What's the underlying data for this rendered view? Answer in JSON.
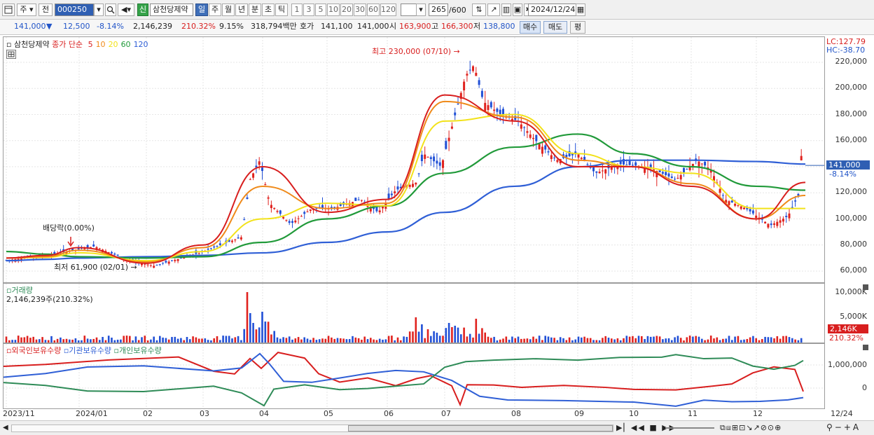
{
  "toolbar": {
    "menu_icon": "window-icon",
    "type_label": "주",
    "prev_label": "전",
    "code": "000250",
    "stock_name_badge": "신",
    "stock_name": "삼천당제약",
    "periods": [
      "일",
      "주",
      "월",
      "년",
      "분",
      "초",
      "틱"
    ],
    "active_period": "일",
    "intervals": [
      "1",
      "3",
      "5",
      "10",
      "20",
      "30",
      "60",
      "120"
    ],
    "count": "265",
    "count_total": "/600",
    "date": "2024/12/24"
  },
  "quote": {
    "price": "141,000",
    "change_arrow": "▼",
    "change": "12,500",
    "change_pct": "-8.14%",
    "volume": "2,146,239",
    "volume_ratio": "210.32%",
    "turnover": "9.15%",
    "amount": "318,794백만",
    "hoga_label": "호가",
    "bid": "141,100",
    "ask": "141,000",
    "open_label": "시",
    "open": "163,900",
    "high_label": "고",
    "high": "166,300",
    "low_label": "저",
    "low": "138,800",
    "buy_label": "매수",
    "sell_label": "매도",
    "eval_label": "평"
  },
  "price_panel": {
    "legend_name": "삼천당제약",
    "legend_ma_label": "종가 단순",
    "ma_periods": [
      "5",
      "10",
      "20",
      "60",
      "120"
    ],
    "ma_colors": [
      "#d81e1e",
      "#ef8a1a",
      "#f2e21a",
      "#219a3a",
      "#2f5fd6"
    ],
    "lc": "LC:127.79",
    "hc": "HC:-38.70",
    "annotation_high": "최고 230,000 (07/10) →",
    "annotation_low": "최저 61,900 (02/01) →",
    "annotation_div": "배당락(0.00%)",
    "current_price_label": "141,000",
    "current_pct_label": "-8.14%",
    "yticks": [
      "220,000",
      "200,000",
      "180,000",
      "160,000",
      "140,000",
      "120,000",
      "100,000",
      "80,000",
      "60,000"
    ]
  },
  "volume_panel": {
    "title": "거래량",
    "value": "2,146,239주(210.32%)",
    "yticks": [
      "10,000K",
      "5,000K"
    ],
    "current_label": "2,146K",
    "current_pct": "210.32%"
  },
  "holding_panel": {
    "legend": [
      "외국인보유수량",
      "기관보유수량",
      "개인보유수량"
    ],
    "colors": [
      "#d81e1e",
      "#2f5fd6",
      "#2e8b57"
    ],
    "yticks": [
      "1,000,000",
      "0"
    ]
  },
  "xaxis": [
    "2023/11",
    "2024/01",
    "02",
    "03",
    "04",
    "05",
    "06",
    "07",
    "08",
    "09",
    "10",
    "11",
    "12",
    "12/24"
  ],
  "chart_data": {
    "type": "line",
    "title": "",
    "xlabel": "",
    "ylabel": "",
    "x": [
      "2023/11",
      "2023/12",
      "2024/01",
      "02",
      "03",
      "04",
      "05",
      "06",
      "07",
      "08",
      "09",
      "10",
      "11",
      "12",
      "12/24"
    ],
    "series": [
      {
        "name": "5",
        "values": [
          70000,
          72000,
          78000,
          66000,
          80000,
          140000,
          105000,
          115000,
          195000,
          175000,
          140000,
          140000,
          125000,
          100000,
          128000
        ]
      },
      {
        "name": "10",
        "values": [
          70000,
          71000,
          76000,
          67000,
          78000,
          125000,
          108000,
          112000,
          190000,
          178000,
          145000,
          140000,
          127000,
          100000,
          118000
        ]
      },
      {
        "name": "20",
        "values": [
          70000,
          70500,
          74000,
          68000,
          75000,
          100000,
          112000,
          110000,
          175000,
          180000,
          150000,
          140000,
          135000,
          108000,
          108000
        ]
      },
      {
        "name": "60",
        "values": [
          75000,
          73000,
          71000,
          70000,
          71000,
          82000,
          100000,
          110000,
          135000,
          155000,
          165000,
          150000,
          140000,
          125000,
          122000
        ]
      },
      {
        "name": "120",
        "values": [
          68000,
          69000,
          70000,
          71000,
          72000,
          74000,
          82000,
          90000,
          105000,
          125000,
          140000,
          145000,
          145000,
          144000,
          142000
        ]
      }
    ],
    "ylim": [
      55000,
      235000
    ],
    "grid": true
  }
}
